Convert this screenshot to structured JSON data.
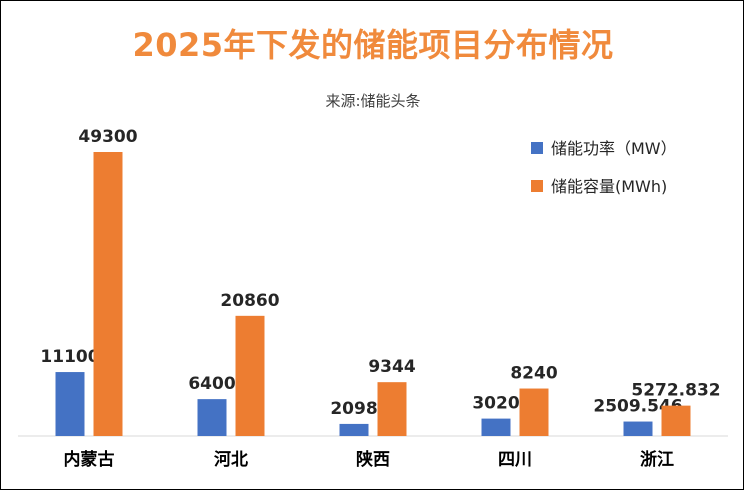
{
  "chart_data": {
    "type": "bar",
    "title": "2025年下发的储能项目分布情况",
    "subtitle": "来源:储能头条",
    "categories": [
      "内蒙古",
      "河北",
      "陕西",
      "四川",
      "浙江"
    ],
    "series": [
      {
        "name": "储能功率（MW）",
        "values": [
          11100,
          6400,
          2098,
          3020,
          2509.546
        ],
        "color": "#4472c4"
      },
      {
        "name": "储能容量(MWh)",
        "values": [
          49300,
          20860,
          9344,
          8240,
          5272.832
        ],
        "color": "#ed7d31"
      }
    ],
    "value_labels": [
      [
        "11100",
        "6400",
        "2098",
        "3020",
        "2509.546"
      ],
      [
        "49300",
        "20860",
        "9344",
        "8240",
        "5272.832"
      ]
    ],
    "ylim": [
      0,
      50000
    ],
    "grid": false,
    "legend_position": "top-right"
  }
}
